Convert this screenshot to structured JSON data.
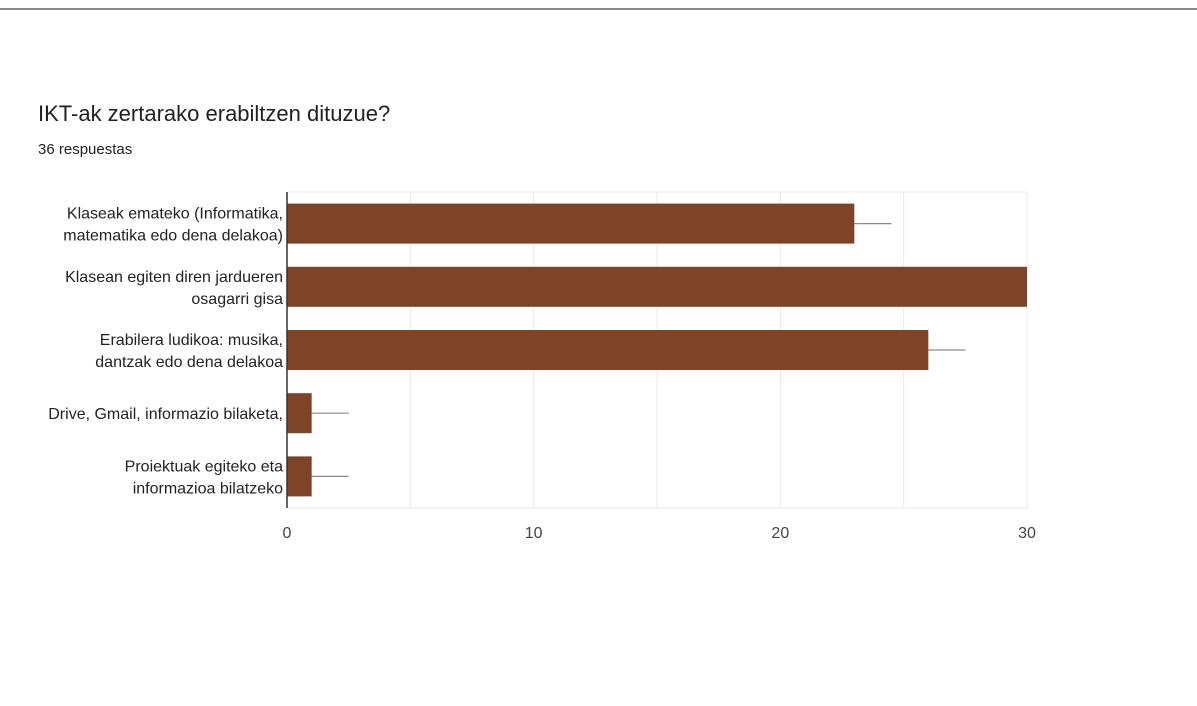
{
  "header": {
    "title": "IKT-ak zertarako erabiltzen dituzue?",
    "subtitle": "36 respuestas"
  },
  "colors": {
    "bar": "#7f4428",
    "grid": "#e8e8e8",
    "axis": "#333333",
    "errorbar": "#8a8a8a"
  },
  "chart_data": {
    "type": "bar",
    "orientation": "horizontal",
    "title": "IKT-ak zertarako erabiltzen dituzue?",
    "subtitle": "36 respuestas",
    "categories": [
      [
        "Klaseak emateko (Informatika,",
        "matematika edo dena delakoa)"
      ],
      [
        "Klasean egiten diren jardueren",
        "osagarri gisa"
      ],
      [
        "Erabilera ludikoa: musika,",
        "dantzak edo dena delakoa"
      ],
      [
        "Drive, Gmail, informazio bilaketa,"
      ],
      [
        "Proiektuak egiteko eta",
        "informazioa bilatzeko"
      ]
    ],
    "values": [
      23,
      30,
      26,
      1,
      1
    ],
    "error": [
      1.5,
      0,
      1.5,
      1.5,
      1.5
    ],
    "xlim": [
      0,
      30
    ],
    "xticks": [
      "0",
      "10",
      "20",
      "30"
    ],
    "grid": true,
    "legend": "none"
  }
}
